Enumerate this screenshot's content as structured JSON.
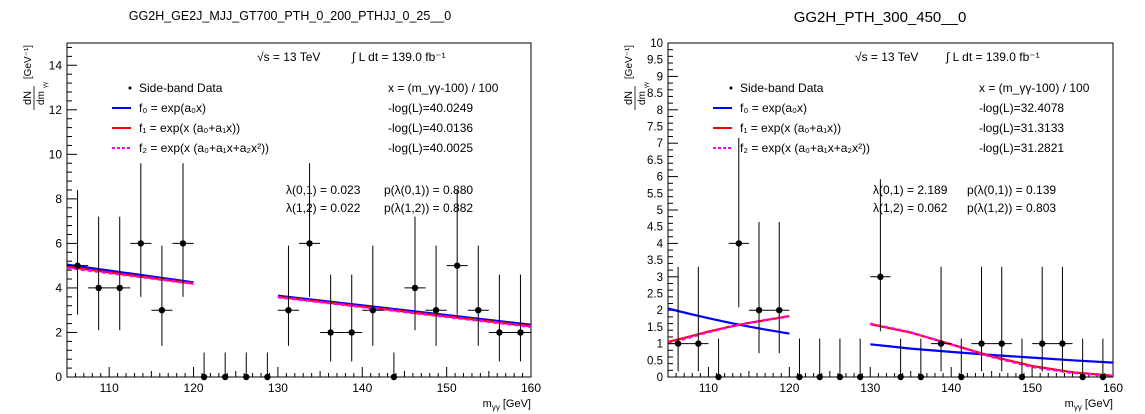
{
  "chart_data": [
    {
      "type": "scatter",
      "title": "GG2H_GE2J_MJJ_GT700_PTH_0_200_PTHJJ_0_25__0",
      "xlabel": "m_γγ [GeV]",
      "ylabel": "dN/dm_γγ [GeV^-1]",
      "xlim": [
        105,
        160
      ],
      "ylim": [
        0,
        15
      ],
      "x_ticks": [
        110,
        120,
        130,
        140,
        150,
        160
      ],
      "y_ticks": [
        0,
        2,
        4,
        6,
        8,
        10,
        12,
        14
      ],
      "energy_label": "√s = 13 TeV",
      "lumi_label": "∫ L dt = 139.0 fb⁻¹",
      "x_def": "x = (m_γγ-100) / 100",
      "legend": [
        {
          "label": "Side-band Data",
          "nll": "x = (m_γγ-100) / 100"
        },
        {
          "label": "f₀ = exp(a₀x)",
          "nll": "-log(L)=40.0249"
        },
        {
          "label": "f₁ = exp(x (a₀+a₁x))",
          "nll": "-log(L)=40.0136"
        },
        {
          "label": "f₂ = exp(x (a₀+a₁x+a₂x²))",
          "nll": "-log(L)=40.0025"
        }
      ],
      "stats": [
        {
          "lam": "λ(0,1) = 0.023",
          "p": "p(λ(0,1)) = 0.880"
        },
        {
          "lam": "λ(1,2) = 0.022",
          "p": "p(λ(1,2)) = 0.882"
        }
      ],
      "points": [
        {
          "x": 106.25,
          "y": 5,
          "lo": 2.2,
          "hi": 3.4
        },
        {
          "x": 108.75,
          "y": 4,
          "lo": 1.9,
          "hi": 3.2
        },
        {
          "x": 111.25,
          "y": 4,
          "lo": 1.9,
          "hi": 3.2
        },
        {
          "x": 113.75,
          "y": 6,
          "lo": 2.4,
          "hi": 3.6
        },
        {
          "x": 116.25,
          "y": 3,
          "lo": 1.6,
          "hi": 2.9
        },
        {
          "x": 118.75,
          "y": 6,
          "lo": 2.4,
          "hi": 3.6
        },
        {
          "x": 121.25,
          "y": 0,
          "lo": 0,
          "hi": 1.1
        },
        {
          "x": 123.75,
          "y": 0,
          "lo": 0,
          "hi": 1.1
        },
        {
          "x": 126.25,
          "y": 0,
          "lo": 0,
          "hi": 1.1
        },
        {
          "x": 128.75,
          "y": 0,
          "lo": 0,
          "hi": 1.1
        },
        {
          "x": 131.25,
          "y": 3,
          "lo": 1.6,
          "hi": 2.9
        },
        {
          "x": 133.75,
          "y": 6,
          "lo": 2.4,
          "hi": 3.6
        },
        {
          "x": 136.25,
          "y": 2,
          "lo": 1.3,
          "hi": 2.6
        },
        {
          "x": 138.75,
          "y": 2,
          "lo": 1.3,
          "hi": 2.6
        },
        {
          "x": 141.25,
          "y": 3,
          "lo": 1.6,
          "hi": 2.9
        },
        {
          "x": 143.75,
          "y": 0,
          "lo": 0,
          "hi": 1.1
        },
        {
          "x": 146.25,
          "y": 4,
          "lo": 1.9,
          "hi": 3.2
        },
        {
          "x": 148.75,
          "y": 3,
          "lo": 1.6,
          "hi": 2.9
        },
        {
          "x": 151.25,
          "y": 5,
          "lo": 2.2,
          "hi": 3.4
        },
        {
          "x": 153.75,
          "y": 3,
          "lo": 1.6,
          "hi": 2.9
        },
        {
          "x": 156.25,
          "y": 2,
          "lo": 1.3,
          "hi": 2.6
        },
        {
          "x": 158.75,
          "y": 2,
          "lo": 1.3,
          "hi": 2.6
        }
      ],
      "bin_half_width": 1.25,
      "fits": [
        {
          "color": "#0000ff",
          "dash": false,
          "segments": [
            [
              [
                105,
                5.05
              ],
              [
                120,
                4.25
              ]
            ],
            [
              [
                130,
                3.65
              ],
              [
                160,
                2.35
              ]
            ]
          ]
        },
        {
          "color": "#ff0000",
          "dash": false,
          "segments": [
            [
              [
                105,
                4.95
              ],
              [
                120,
                4.2
              ]
            ],
            [
              [
                130,
                3.6
              ],
              [
                160,
                2.28
              ]
            ]
          ]
        },
        {
          "color": "#ff00ff",
          "dash": true,
          "segments": [
            [
              [
                105,
                4.9
              ],
              [
                120,
                4.18
              ]
            ],
            [
              [
                130,
                3.58
              ],
              [
                160,
                2.25
              ]
            ]
          ]
        }
      ]
    },
    {
      "type": "scatter",
      "title": "GG2H_PTH_300_450__0",
      "xlabel": "m_γγ [GeV]",
      "ylabel": "dN/dm_γγ [GeV^-1]",
      "xlim": [
        105,
        160
      ],
      "ylim": [
        0,
        10
      ],
      "x_ticks": [
        110,
        120,
        130,
        140,
        150,
        160
      ],
      "y_ticks": [
        0,
        0.5,
        1,
        1.5,
        2,
        2.5,
        3,
        3.5,
        4,
        4.5,
        5,
        5.5,
        6,
        6.5,
        7,
        7.5,
        8,
        8.5,
        9,
        9.5,
        10
      ],
      "energy_label": "√s = 13 TeV",
      "lumi_label": "∫ L dt = 139.0 fb⁻¹",
      "x_def": "x = (m_γγ-100) / 100",
      "legend": [
        {
          "label": "Side-band Data",
          "nll": "x = (m_γγ-100) / 100"
        },
        {
          "label": "f₀ = exp(a₀x)",
          "nll": "-log(L)=32.4078"
        },
        {
          "label": "f₁ = exp(x (a₀+a₁x))",
          "nll": "-log(L)=31.3133"
        },
        {
          "label": "f₂ = exp(x (a₀+a₁x+a₂x²))",
          "nll": "-log(L)=31.2821"
        }
      ],
      "stats": [
        {
          "lam": "λ(0,1) = 2.189",
          "p": "p(λ(0,1)) = 0.139"
        },
        {
          "lam": "λ(1,2) = 0.062",
          "p": "p(λ(1,2)) = 0.803"
        }
      ],
      "points": [
        {
          "x": 106.25,
          "y": 1,
          "lo": 0.83,
          "hi": 2.3
        },
        {
          "x": 108.75,
          "y": 1,
          "lo": 0.83,
          "hi": 2.3
        },
        {
          "x": 111.25,
          "y": 0,
          "lo": 0,
          "hi": 1.15
        },
        {
          "x": 113.75,
          "y": 4,
          "lo": 1.91,
          "hi": 3.16
        },
        {
          "x": 116.25,
          "y": 2,
          "lo": 1.29,
          "hi": 2.64
        },
        {
          "x": 118.75,
          "y": 2,
          "lo": 1.29,
          "hi": 2.64
        },
        {
          "x": 121.25,
          "y": 0,
          "lo": 0,
          "hi": 1.15
        },
        {
          "x": 123.75,
          "y": 0,
          "lo": 0,
          "hi": 1.15
        },
        {
          "x": 126.25,
          "y": 0,
          "lo": 0,
          "hi": 1.15
        },
        {
          "x": 128.75,
          "y": 0,
          "lo": 0,
          "hi": 1.15
        },
        {
          "x": 131.25,
          "y": 3,
          "lo": 1.63,
          "hi": 2.92
        },
        {
          "x": 133.75,
          "y": 0,
          "lo": 0,
          "hi": 1.15
        },
        {
          "x": 136.25,
          "y": 0,
          "lo": 0,
          "hi": 1.15
        },
        {
          "x": 138.75,
          "y": 1,
          "lo": 0.83,
          "hi": 2.3
        },
        {
          "x": 141.25,
          "y": 0,
          "lo": 0,
          "hi": 1.15
        },
        {
          "x": 143.75,
          "y": 1,
          "lo": 0.83,
          "hi": 2.3
        },
        {
          "x": 146.25,
          "y": 1,
          "lo": 0.83,
          "hi": 2.3
        },
        {
          "x": 148.75,
          "y": 0,
          "lo": 0,
          "hi": 1.15
        },
        {
          "x": 151.25,
          "y": 1,
          "lo": 0.83,
          "hi": 2.3
        },
        {
          "x": 153.75,
          "y": 1,
          "lo": 0.83,
          "hi": 2.3
        },
        {
          "x": 156.25,
          "y": 0,
          "lo": 0,
          "hi": 1.15
        },
        {
          "x": 158.75,
          "y": 0,
          "lo": 0,
          "hi": 1.15
        }
      ],
      "bin_half_width": 1.25,
      "fits": [
        {
          "color": "#0000ff",
          "dash": false,
          "segments": [
            [
              [
                105,
                2.05
              ],
              [
                107.5,
                1.9
              ],
              [
                110,
                1.76
              ],
              [
                112.5,
                1.63
              ],
              [
                115,
                1.51
              ],
              [
                117.5,
                1.4
              ],
              [
                120,
                1.3
              ]
            ],
            [
              [
                130,
                0.98
              ],
              [
                135,
                0.85
              ],
              [
                140,
                0.75
              ],
              [
                145,
                0.66
              ],
              [
                150,
                0.58
              ],
              [
                155,
                0.5
              ],
              [
                160,
                0.43
              ]
            ]
          ]
        },
        {
          "color": "#ff0000",
          "dash": false,
          "segments": [
            [
              [
                105,
                1.05
              ],
              [
                107.5,
                1.2
              ],
              [
                110,
                1.36
              ],
              [
                112.5,
                1.5
              ],
              [
                115,
                1.62
              ],
              [
                117.5,
                1.72
              ],
              [
                120,
                1.82
              ]
            ],
            [
              [
                130,
                1.58
              ],
              [
                135,
                1.33
              ],
              [
                140,
                0.98
              ],
              [
                145,
                0.62
              ],
              [
                150,
                0.33
              ],
              [
                155,
                0.14
              ],
              [
                160,
                0.04
              ]
            ]
          ]
        },
        {
          "color": "#ff00ff",
          "dash": true,
          "segments": [
            [
              [
                105,
                1.0
              ],
              [
                107.5,
                1.17
              ],
              [
                110,
                1.34
              ],
              [
                112.5,
                1.49
              ],
              [
                115,
                1.62
              ],
              [
                117.5,
                1.73
              ],
              [
                120,
                1.83
              ]
            ],
            [
              [
                130,
                1.6
              ],
              [
                135,
                1.34
              ],
              [
                140,
                0.97
              ],
              [
                145,
                0.6
              ],
              [
                150,
                0.3
              ],
              [
                155,
                0.12
              ],
              [
                160,
                0.03
              ]
            ]
          ]
        }
      ]
    }
  ]
}
